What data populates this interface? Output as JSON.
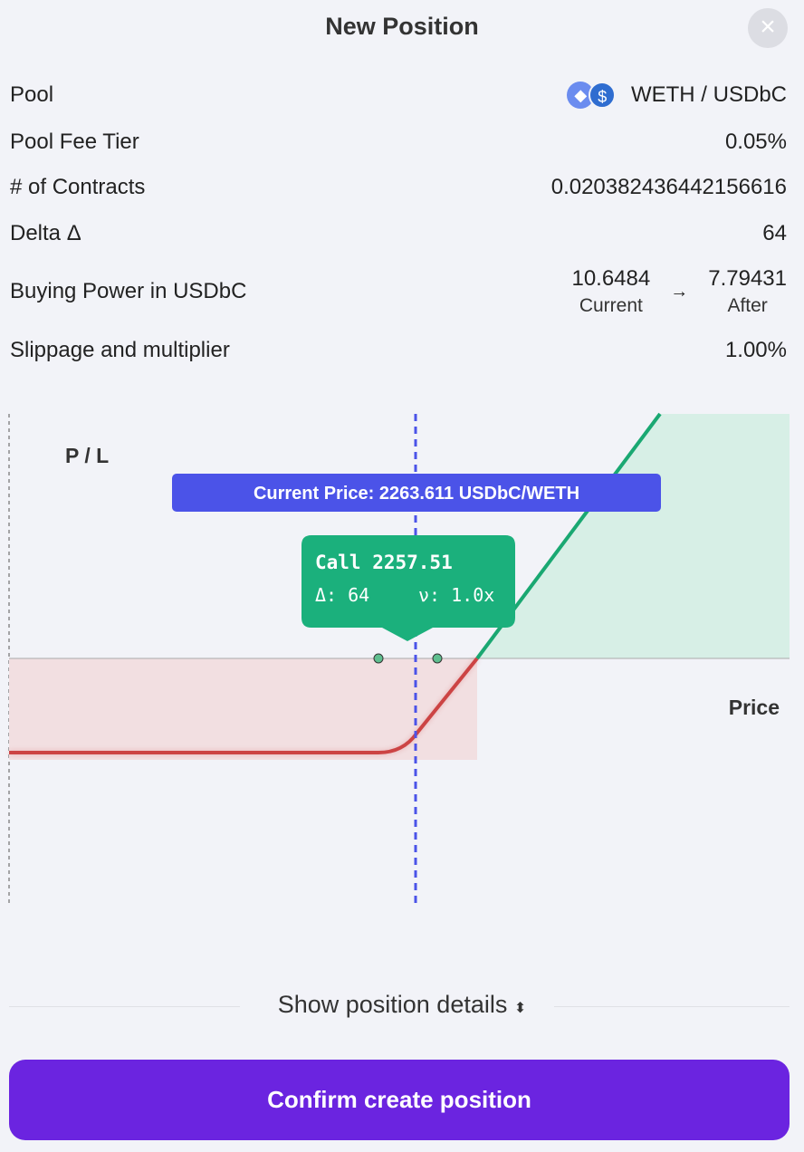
{
  "header": {
    "title": "New Position",
    "close_icon": "close-icon"
  },
  "rows": {
    "pool": {
      "label": "Pool",
      "value": "WETH / USDbC",
      "icons": [
        "eth-icon",
        "usdc-icon"
      ]
    },
    "fee": {
      "label": "Pool Fee Tier",
      "value": "0.05%"
    },
    "contracts": {
      "label": "# of Contracts",
      "value": "0.020382436442156616"
    },
    "delta": {
      "label": "Delta Δ",
      "value": "64"
    },
    "buying_power": {
      "label": "Buying Power in USDbC",
      "current": "10.6484",
      "current_label": "Current",
      "arrow": "→",
      "after": "7.79431",
      "after_label": "After"
    },
    "slippage": {
      "label": "Slippage and multiplier",
      "value": "1.00%"
    }
  },
  "chart_data": {
    "type": "line",
    "ylabel": "P / L",
    "xlabel": "Price",
    "current_price_label": "Current Price: 2263.611 USDbC/WETH",
    "current_price": 2263.611,
    "tooltip": {
      "title": "Call 2257.51",
      "delta": "Δ: 64",
      "multiplier": "ν: 1.0x"
    },
    "strike": 2257.51,
    "colors": {
      "profit": "#1aa872",
      "loss": "#cc4444",
      "current": "#4b53e8"
    }
  },
  "footer": {
    "details": "Show position details",
    "details_icon": "sort-icon",
    "confirm": "Confirm create position"
  }
}
